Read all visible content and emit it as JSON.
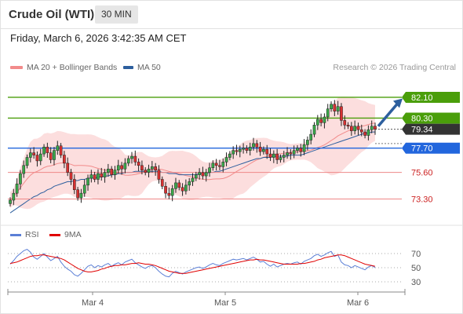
{
  "header": {
    "title": "Crude Oil (WTI)",
    "interval": "30 MIN"
  },
  "datetime": "Friday, March 6, 2026 3:42:35 AM CET",
  "legend": {
    "items": [
      {
        "label": "MA 20 + Bollinger Bands",
        "color": "#f28b8b"
      },
      {
        "label": "MA 50",
        "color": "#2d5f9e"
      }
    ],
    "credit": "Research © 2026 Trading Central"
  },
  "rsi_legend": {
    "items": [
      {
        "label": "RSI",
        "color": "#5b7fd6"
      },
      {
        "label": "9MA",
        "color": "#e00000"
      }
    ]
  },
  "chart_data": [
    {
      "type": "candlestick",
      "ylim": [
        71.5,
        84.0
      ],
      "x_ticks": [
        "Mar 4",
        "Mar 5",
        "Mar 6"
      ],
      "levels": [
        {
          "value": 82.1,
          "label": "82.10",
          "color": "#4a9e0a",
          "style": "resistance"
        },
        {
          "value": 80.3,
          "label": "80.30",
          "color": "#4a9e0a",
          "style": "resistance"
        },
        {
          "value": 79.34,
          "label": "79.34",
          "color": "#333333",
          "style": "last"
        },
        {
          "value": 77.7,
          "label": "77.70",
          "color": "#2266dd",
          "style": "pivot"
        },
        {
          "value": 75.6,
          "label": "75.60",
          "color": "#cc2222",
          "style": "support"
        },
        {
          "value": 73.3,
          "label": "73.30",
          "color": "#cc2222",
          "style": "support"
        }
      ],
      "closes": [
        73.2,
        73.8,
        74.6,
        75.5,
        76.2,
        76.9,
        77.3,
        77.1,
        76.6,
        77.2,
        77.8,
        77.3,
        76.7,
        77.5,
        77.9,
        77.1,
        76.4,
        75.6,
        75.0,
        74.1,
        73.4,
        73.8,
        74.5,
        75.1,
        75.4,
        75.0,
        75.5,
        75.2,
        75.6,
        75.9,
        75.4,
        75.8,
        76.2,
        75.9,
        76.4,
        76.8,
        77.0,
        76.5,
        76.2,
        75.8,
        75.6,
        75.9,
        76.1,
        75.8,
        75.0,
        74.4,
        73.8,
        73.6,
        74.2,
        74.7,
        74.3,
        74.0,
        74.5,
        74.8,
        75.1,
        75.4,
        75.6,
        75.3,
        75.6,
        76.0,
        76.4,
        76.2,
        76.1,
        76.5,
        76.9,
        77.2,
        77.5,
        77.4,
        77.6,
        77.7,
        77.5,
        77.8,
        78.1,
        77.8,
        77.4,
        77.6,
        77.2,
        76.9,
        77.2,
        76.7,
        76.9,
        77.1,
        77.3,
        77.2,
        77.5,
        77.7,
        77.4,
        78.0,
        78.4,
        78.9,
        79.7,
        80.2,
        79.9,
        80.4,
        81.1,
        81.5,
        80.9,
        81.3,
        80.1,
        79.7,
        79.6,
        79.2,
        79.6,
        79.3,
        79.1,
        78.8,
        79.3,
        79.6,
        79.34
      ],
      "ma50": [
        72.1,
        72.3,
        72.5,
        72.7,
        72.9,
        73.1,
        73.3,
        73.5,
        73.6,
        73.8,
        73.9,
        74.1,
        74.2,
        74.4,
        74.5,
        74.6,
        74.7,
        74.8,
        74.8,
        74.9,
        74.9,
        75.0,
        75.0,
        75.1,
        75.1,
        75.1,
        75.2,
        75.2,
        75.3,
        75.3,
        75.4,
        75.4,
        75.5,
        75.5,
        75.6,
        75.6,
        75.6,
        75.7,
        75.7,
        75.7,
        75.7,
        75.7,
        75.7,
        75.7,
        75.7,
        75.6,
        75.6,
        75.5,
        75.5,
        75.5,
        75.4,
        75.4,
        75.4,
        75.4,
        75.4,
        75.4,
        75.5,
        75.5,
        75.5,
        75.6,
        75.6,
        75.7,
        75.7,
        75.8,
        75.9,
        76.0,
        76.1,
        76.2,
        76.3,
        76.4,
        76.5,
        76.6,
        76.7,
        76.8,
        76.8,
        76.9,
        76.9,
        76.9,
        77.0,
        77.0,
        77.0,
        77.0,
        77.0,
        77.1,
        77.1,
        77.1,
        77.1,
        77.2,
        77.3,
        77.4,
        77.5,
        77.6,
        77.7,
        77.8,
        77.9,
        78.0,
        78.1,
        78.2,
        78.3,
        78.4,
        78.5,
        78.6,
        78.7,
        78.8,
        78.9,
        79.0,
        79.0,
        79.1,
        79.1
      ]
    },
    {
      "type": "line",
      "name": "RSI",
      "ylim": [
        20,
        80
      ],
      "y_ticks": [
        70,
        50,
        30
      ],
      "x_ticks": [
        "Mar 4",
        "Mar 5",
        "Mar 6"
      ],
      "rsi": [
        55,
        60,
        66,
        70,
        74,
        76,
        72,
        65,
        62,
        66,
        70,
        65,
        60,
        63,
        66,
        58,
        52,
        48,
        45,
        40,
        38,
        42,
        47,
        52,
        54,
        50,
        53,
        51,
        54,
        56,
        52,
        55,
        57,
        54,
        58,
        60,
        62,
        57,
        54,
        51,
        49,
        52,
        53,
        50,
        45,
        41,
        38,
        37,
        42,
        45,
        43,
        41,
        44,
        46,
        48,
        50,
        51,
        49,
        51,
        54,
        56,
        54,
        53,
        56,
        58,
        60,
        62,
        61,
        62,
        63,
        61,
        63,
        65,
        62,
        58,
        59,
        55,
        52,
        55,
        51,
        53,
        55,
        56,
        55,
        57,
        58,
        55,
        59,
        61,
        63,
        67,
        69,
        66,
        68,
        71,
        73,
        66,
        68,
        58,
        54,
        53,
        50,
        53,
        51,
        49,
        47,
        51,
        53,
        50
      ],
      "ma9": [
        56,
        57,
        58,
        60,
        62,
        64,
        66,
        67,
        67,
        68,
        68,
        67,
        66,
        65,
        64,
        63,
        61,
        58,
        55,
        52,
        49,
        47,
        45,
        44,
        44,
        45,
        46,
        48,
        49,
        51,
        52,
        53,
        53,
        54,
        54,
        55,
        56,
        56,
        57,
        56,
        55,
        55,
        54,
        53,
        51,
        49,
        47,
        45,
        44,
        43,
        42,
        42,
        42,
        43,
        44,
        45,
        46,
        47,
        48,
        49,
        50,
        51,
        52,
        53,
        54,
        55,
        56,
        57,
        58,
        59,
        60,
        61,
        61,
        62,
        61,
        61,
        60,
        59,
        58,
        57,
        56,
        55,
        55,
        55,
        55,
        55,
        56,
        56,
        57,
        58,
        59,
        61,
        62,
        64,
        65,
        66,
        67,
        68,
        68,
        67,
        65,
        63,
        61,
        59,
        57,
        55,
        54,
        53,
        52
      ]
    }
  ]
}
